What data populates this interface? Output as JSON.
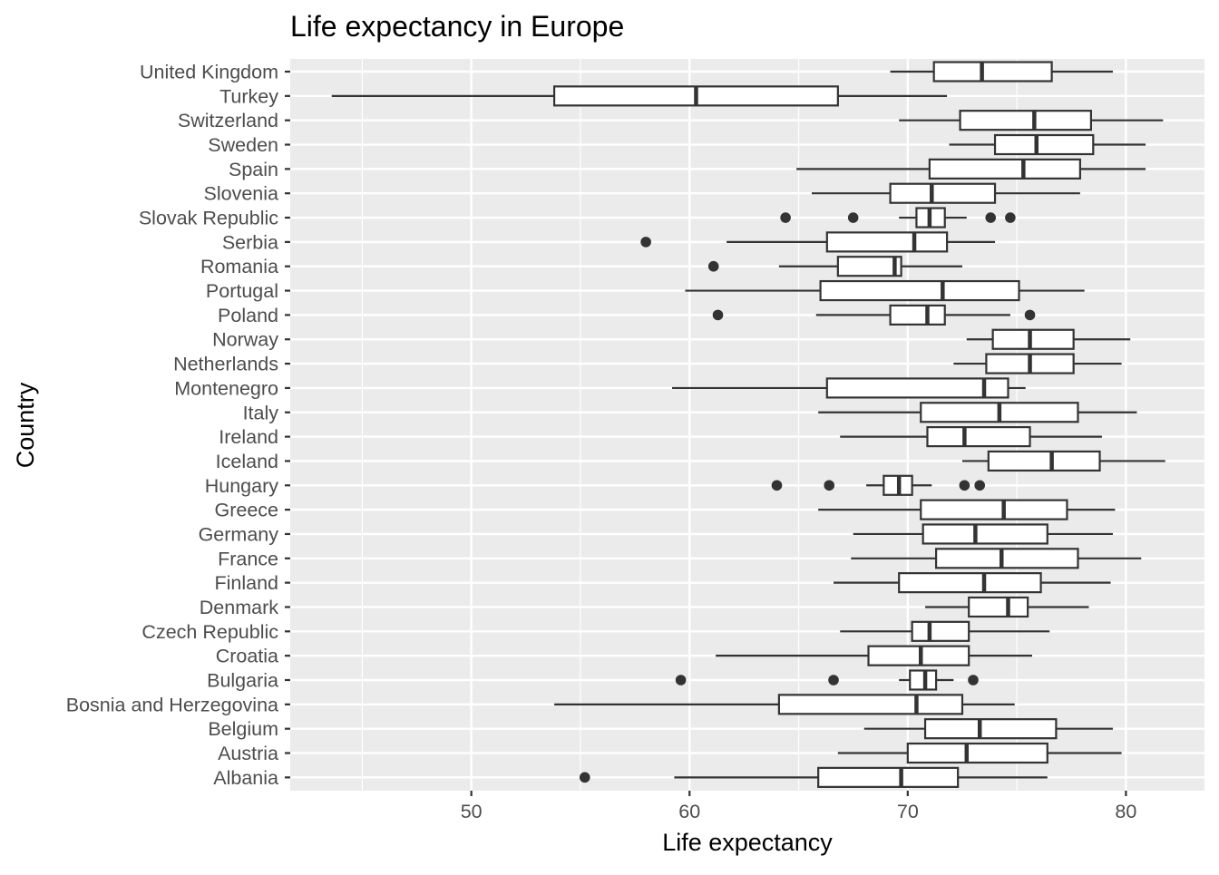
{
  "chart_data": {
    "type": "boxplot",
    "orientation": "horizontal",
    "title": "Life expectancy in Europe",
    "xlabel": "Life expectancy",
    "ylabel": "Country",
    "xlim": [
      41.7,
      83.6
    ],
    "xticks": [
      50,
      60,
      70,
      80
    ],
    "xtick_labels": [
      "50",
      "60",
      "70",
      "80"
    ],
    "grid": true,
    "colors": {
      "panel_background": "#ebebeb",
      "grid_major": "#ffffff",
      "box_fill": "#ffffff",
      "box_stroke": "#333333",
      "text": "#4d4d4d",
      "title_text": "#000000"
    },
    "countries": [
      {
        "name": "United Kingdom",
        "whisker_low": 69.2,
        "q1": 71.2,
        "median": 73.4,
        "q3": 76.6,
        "whisker_high": 79.4,
        "outliers": []
      },
      {
        "name": "Turkey",
        "whisker_low": 43.6,
        "q1": 53.8,
        "median": 60.3,
        "q3": 66.8,
        "whisker_high": 71.8,
        "outliers": []
      },
      {
        "name": "Switzerland",
        "whisker_low": 69.6,
        "q1": 72.4,
        "median": 75.8,
        "q3": 78.4,
        "whisker_high": 81.7,
        "outliers": []
      },
      {
        "name": "Sweden",
        "whisker_low": 71.9,
        "q1": 74.0,
        "median": 75.9,
        "q3": 78.5,
        "whisker_high": 80.9,
        "outliers": []
      },
      {
        "name": "Spain",
        "whisker_low": 64.9,
        "q1": 71.0,
        "median": 75.3,
        "q3": 77.9,
        "whisker_high": 80.9,
        "outliers": []
      },
      {
        "name": "Slovenia",
        "whisker_low": 65.6,
        "q1": 69.2,
        "median": 71.1,
        "q3": 74.0,
        "whisker_high": 77.9,
        "outliers": []
      },
      {
        "name": "Slovak Republic",
        "whisker_low": 69.6,
        "q1": 70.4,
        "median": 71.0,
        "q3": 71.7,
        "whisker_high": 72.7,
        "outliers": [
          64.4,
          67.5,
          73.8,
          74.7
        ]
      },
      {
        "name": "Serbia",
        "whisker_low": 61.7,
        "q1": 66.3,
        "median": 70.3,
        "q3": 71.8,
        "whisker_high": 74.0,
        "outliers": [
          58.0
        ]
      },
      {
        "name": "Romania",
        "whisker_low": 64.1,
        "q1": 66.8,
        "median": 69.4,
        "q3": 69.7,
        "whisker_high": 72.5,
        "outliers": [
          61.1
        ]
      },
      {
        "name": "Portugal",
        "whisker_low": 59.8,
        "q1": 66.0,
        "median": 71.6,
        "q3": 75.1,
        "whisker_high": 78.1,
        "outliers": []
      },
      {
        "name": "Poland",
        "whisker_low": 65.8,
        "q1": 69.2,
        "median": 70.9,
        "q3": 71.7,
        "whisker_high": 74.7,
        "outliers": [
          61.3,
          75.6
        ]
      },
      {
        "name": "Norway",
        "whisker_low": 72.7,
        "q1": 73.9,
        "median": 75.6,
        "q3": 77.6,
        "whisker_high": 80.2,
        "outliers": []
      },
      {
        "name": "Netherlands",
        "whisker_low": 72.1,
        "q1": 73.6,
        "median": 75.6,
        "q3": 77.6,
        "whisker_high": 79.8,
        "outliers": []
      },
      {
        "name": "Montenegro",
        "whisker_low": 59.2,
        "q1": 66.3,
        "median": 73.5,
        "q3": 74.6,
        "whisker_high": 75.4,
        "outliers": []
      },
      {
        "name": "Italy",
        "whisker_low": 65.9,
        "q1": 70.6,
        "median": 74.2,
        "q3": 77.8,
        "whisker_high": 80.5,
        "outliers": []
      },
      {
        "name": "Ireland",
        "whisker_low": 66.9,
        "q1": 70.9,
        "median": 72.6,
        "q3": 75.6,
        "whisker_high": 78.9,
        "outliers": []
      },
      {
        "name": "Iceland",
        "whisker_low": 72.5,
        "q1": 73.7,
        "median": 76.6,
        "q3": 78.8,
        "whisker_high": 81.8,
        "outliers": []
      },
      {
        "name": "Hungary",
        "whisker_low": 68.1,
        "q1": 68.9,
        "median": 69.6,
        "q3": 70.2,
        "whisker_high": 71.1,
        "outliers": [
          64.0,
          66.4,
          72.6,
          73.3
        ]
      },
      {
        "name": "Greece",
        "whisker_low": 65.9,
        "q1": 70.6,
        "median": 74.4,
        "q3": 77.3,
        "whisker_high": 79.5,
        "outliers": []
      },
      {
        "name": "Germany",
        "whisker_low": 67.5,
        "q1": 70.7,
        "median": 73.1,
        "q3": 76.4,
        "whisker_high": 79.4,
        "outliers": []
      },
      {
        "name": "France",
        "whisker_low": 67.4,
        "q1": 71.3,
        "median": 74.3,
        "q3": 77.8,
        "whisker_high": 80.7,
        "outliers": []
      },
      {
        "name": "Finland",
        "whisker_low": 66.6,
        "q1": 69.6,
        "median": 73.5,
        "q3": 76.1,
        "whisker_high": 79.3,
        "outliers": []
      },
      {
        "name": "Denmark",
        "whisker_low": 70.8,
        "q1": 72.8,
        "median": 74.6,
        "q3": 75.5,
        "whisker_high": 78.3,
        "outliers": []
      },
      {
        "name": "Czech Republic",
        "whisker_low": 66.9,
        "q1": 70.2,
        "median": 71.0,
        "q3": 72.8,
        "whisker_high": 76.5,
        "outliers": []
      },
      {
        "name": "Croatia",
        "whisker_low": 61.2,
        "q1": 68.2,
        "median": 70.6,
        "q3": 72.8,
        "whisker_high": 75.7,
        "outliers": []
      },
      {
        "name": "Bulgaria",
        "whisker_low": 69.6,
        "q1": 70.1,
        "median": 70.8,
        "q3": 71.3,
        "whisker_high": 72.1,
        "outliers": [
          59.6,
          66.6,
          73.0
        ]
      },
      {
        "name": "Bosnia and Herzegovina",
        "whisker_low": 53.8,
        "q1": 64.1,
        "median": 70.4,
        "q3": 72.5,
        "whisker_high": 74.9,
        "outliers": []
      },
      {
        "name": "Belgium",
        "whisker_low": 68.0,
        "q1": 70.8,
        "median": 73.3,
        "q3": 76.8,
        "whisker_high": 79.4,
        "outliers": []
      },
      {
        "name": "Austria",
        "whisker_low": 66.8,
        "q1": 70.0,
        "median": 72.7,
        "q3": 76.4,
        "whisker_high": 79.8,
        "outliers": []
      },
      {
        "name": "Albania",
        "whisker_low": 59.3,
        "q1": 65.9,
        "median": 69.7,
        "q3": 72.3,
        "whisker_high": 76.4,
        "outliers": [
          55.2
        ]
      }
    ]
  }
}
